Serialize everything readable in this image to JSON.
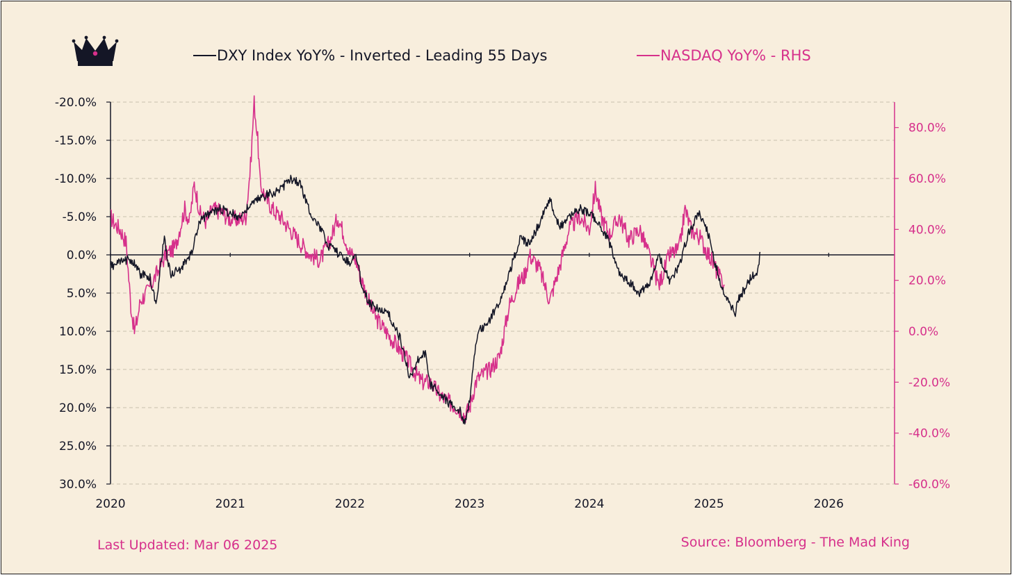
{
  "colors": {
    "background": "#f8eedd",
    "dxy": "#141626",
    "nasdaq": "#d6308b",
    "grid": "#c9c0ad"
  },
  "logo_icon": "crown-icon",
  "footer": {
    "updated": "Last Updated: Mar 06 2025",
    "source": "Source: Bloomberg - The Mad King"
  },
  "chart_data": {
    "type": "line",
    "title": "",
    "legend": {
      "placement": "top",
      "entries": [
        "DXY Index YoY% - Inverted - Leading 55 Days",
        "NASDAQ YoY% - RHS"
      ]
    },
    "grid": "horizontal dashed",
    "x_axis": {
      "range": [
        2020,
        2026.55
      ],
      "ticks": [
        "2020",
        "2021",
        "2022",
        "2023",
        "2024",
        "2025",
        "2026"
      ]
    },
    "y_left": {
      "inverted": true,
      "range": [
        -20,
        30
      ],
      "ticks": [
        "-20.0%",
        "-15.0%",
        "-10.0%",
        "-5.0%",
        "0.0%",
        "5.0%",
        "10.0%",
        "15.0%",
        "20.0%",
        "25.0%",
        "30.0%"
      ],
      "values": [
        -20,
        -15,
        -10,
        -5,
        0,
        5,
        10,
        15,
        20,
        25,
        30
      ]
    },
    "y_right": {
      "range": [
        -60,
        90
      ],
      "ticks": [
        "80.0%",
        "60.0%",
        "40.0%",
        "20.0%",
        "0.0%",
        "-20.0%",
        "-40.0%",
        "-60.0%"
      ],
      "values": [
        80,
        60,
        40,
        20,
        0,
        -20,
        -40,
        -60
      ]
    },
    "series": [
      {
        "name": "DXY Index YoY% - Inverted - Leading 55 Days",
        "axis": "left",
        "x": [
          2020.0,
          2020.08,
          2020.17,
          2020.25,
          2020.33,
          2020.38,
          2020.42,
          2020.45,
          2020.5,
          2020.58,
          2020.67,
          2020.75,
          2020.83,
          2020.92,
          2021.0,
          2021.08,
          2021.17,
          2021.25,
          2021.33,
          2021.42,
          2021.5,
          2021.58,
          2021.67,
          2021.75,
          2021.83,
          2021.92,
          2022.0,
          2022.05,
          2022.1,
          2022.17,
          2022.25,
          2022.33,
          2022.42,
          2022.5,
          2022.58,
          2022.63,
          2022.67,
          2022.75,
          2022.83,
          2022.92,
          2022.96,
          2023.0,
          2023.05,
          2023.08,
          2023.17,
          2023.25,
          2023.33,
          2023.42,
          2023.5,
          2023.58,
          2023.67,
          2023.75,
          2023.83,
          2023.92,
          2024.0,
          2024.08,
          2024.17,
          2024.25,
          2024.33,
          2024.42,
          2024.5,
          2024.58,
          2024.67,
          2024.75,
          2024.83,
          2024.92,
          2025.0,
          2025.05,
          2025.1,
          2025.17,
          2025.22,
          2025.25,
          2025.3,
          2025.35,
          2025.4,
          2025.43
        ],
        "values": [
          1.5,
          1.0,
          0.5,
          2.5,
          3.0,
          6.5,
          1.0,
          -2.0,
          2.5,
          2.0,
          0.0,
          -4.5,
          -5.5,
          -6.0,
          -5.5,
          -5.0,
          -6.5,
          -7.5,
          -8.0,
          -8.5,
          -10.0,
          -9.5,
          -5.5,
          -3.5,
          -1.0,
          0.0,
          1.0,
          0.0,
          4.0,
          6.5,
          7.0,
          8.0,
          11.0,
          16.0,
          13.5,
          13.0,
          17.0,
          18.0,
          19.5,
          20.5,
          22.0,
          19.0,
          12.0,
          10.0,
          8.5,
          6.0,
          2.5,
          -2.0,
          -1.5,
          -4.0,
          -7.5,
          -3.5,
          -5.0,
          -6.0,
          -5.5,
          -4.0,
          -1.5,
          2.5,
          3.5,
          5.0,
          4.0,
          0.0,
          3.5,
          1.5,
          -3.0,
          -5.5,
          -2.5,
          1.0,
          4.0,
          6.5,
          7.5,
          5.5,
          4.5,
          3.0,
          2.5,
          -0.3
        ]
      },
      {
        "name": "NASDAQ YoY% - RHS",
        "axis": "right",
        "x": [
          2020.0,
          2020.04,
          2020.08,
          2020.13,
          2020.17,
          2020.2,
          2020.22,
          2020.25,
          2020.3,
          2020.38,
          2020.46,
          2020.54,
          2020.62,
          2020.66,
          2020.7,
          2020.75,
          2020.8,
          2020.85,
          2020.92,
          2021.0,
          2021.08,
          2021.13,
          2021.17,
          2021.2,
          2021.23,
          2021.25,
          2021.3,
          2021.37,
          2021.42,
          2021.5,
          2021.58,
          2021.67,
          2021.75,
          2021.83,
          2021.9,
          2021.95,
          2022.0,
          2022.05,
          2022.1,
          2022.17,
          2022.22,
          2022.3,
          2022.38,
          2022.46,
          2022.54,
          2022.6,
          2022.67,
          2022.75,
          2022.83,
          2022.9,
          2022.96,
          2023.0,
          2023.05,
          2023.08,
          2023.17,
          2023.25,
          2023.33,
          2023.42,
          2023.46,
          2023.5,
          2023.58,
          2023.67,
          2023.75,
          2023.83,
          2023.92,
          2024.0,
          2024.05,
          2024.1,
          2024.17,
          2024.25,
          2024.33,
          2024.42,
          2024.5,
          2024.58,
          2024.67,
          2024.75,
          2024.8,
          2024.85,
          2024.92,
          2025.0,
          2025.05,
          2025.1,
          2025.13
        ],
        "values": [
          45.0,
          42.0,
          40.0,
          35.0,
          10.0,
          0.0,
          4.0,
          12.0,
          15.0,
          22.0,
          30.0,
          33.0,
          48.0,
          43.0,
          58.0,
          46.0,
          43.0,
          48.0,
          47.0,
          44.0,
          44.0,
          45.0,
          65.0,
          90.0,
          75.0,
          58.0,
          52.0,
          47.0,
          45.0,
          40.0,
          35.0,
          30.0,
          28.0,
          35.0,
          45.0,
          38.0,
          31.0,
          28.0,
          20.0,
          10.0,
          5.0,
          0.0,
          -5.0,
          -10.0,
          -16.0,
          -20.0,
          -20.0,
          -25.0,
          -28.0,
          -30.0,
          -33.0,
          -30.0,
          -20.0,
          -18.0,
          -15.0,
          -10.0,
          10.0,
          20.0,
          22.0,
          30.0,
          25.0,
          12.0,
          25.0,
          40.0,
          45.0,
          40.0,
          56.0,
          45.0,
          38.0,
          45.0,
          36.0,
          40.0,
          30.0,
          18.0,
          30.0,
          32.0,
          48.0,
          40.0,
          37.0,
          30.0,
          25.0,
          20.0,
          18.0
        ]
      }
    ]
  }
}
